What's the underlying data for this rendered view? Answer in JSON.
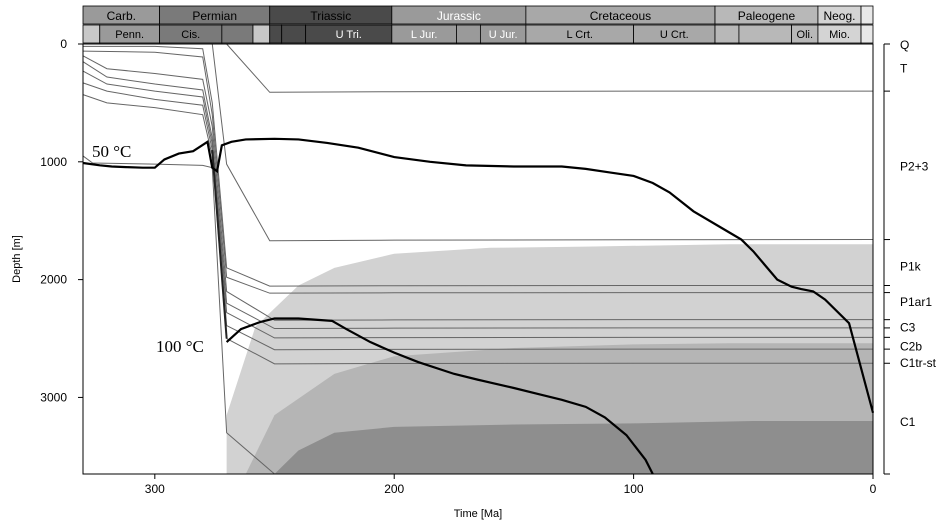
{
  "chart_data": {
    "type": "line",
    "title": "",
    "xlabel": "Time [Ma]",
    "ylabel": "Depth [m]",
    "xlim": [
      330,
      0
    ],
    "ylim": [
      3650,
      0
    ],
    "x_reversed": true,
    "y_reversed": true,
    "x_ticks": [
      300,
      200,
      100,
      0
    ],
    "y_ticks": [
      0,
      1000,
      2000,
      3000
    ],
    "grid": false,
    "timescale_periods": [
      {
        "label": "Carb.",
        "start": 330,
        "end": 298
      },
      {
        "label": "Permian",
        "start": 298,
        "end": 252
      },
      {
        "label": "Triassic",
        "start": 252,
        "end": 201
      },
      {
        "label": "Jurassic",
        "start": 201,
        "end": 145
      },
      {
        "label": "Cretaceous",
        "start": 145,
        "end": 66
      },
      {
        "label": "Paleogene",
        "start": 66,
        "end": 23
      },
      {
        "label": "Neog.",
        "start": 23,
        "end": 5
      }
    ],
    "timescale_epochs": [
      {
        "label": "",
        "start": 330,
        "end": 323
      },
      {
        "label": "Penn.",
        "start": 323,
        "end": 298
      },
      {
        "label": "Cis.",
        "start": 298,
        "end": 272
      },
      {
        "label": "",
        "start": 272,
        "end": 259
      },
      {
        "label": "",
        "start": 259,
        "end": 252
      },
      {
        "label": "",
        "start": 252,
        "end": 247
      },
      {
        "label": "",
        "start": 247,
        "end": 237
      },
      {
        "label": "U Tri.",
        "start": 237,
        "end": 201
      },
      {
        "label": "L Jur.",
        "start": 201,
        "end": 174
      },
      {
        "label": "",
        "start": 174,
        "end": 164
      },
      {
        "label": "U Jur.",
        "start": 164,
        "end": 145
      },
      {
        "label": "L Crt.",
        "start": 145,
        "end": 100
      },
      {
        "label": "U Crt.",
        "start": 100,
        "end": 66
      },
      {
        "label": "",
        "start": 66,
        "end": 56
      },
      {
        "label": "",
        "start": 56,
        "end": 34
      },
      {
        "label": "Oli.",
        "start": 34,
        "end": 23
      },
      {
        "label": "Mio.",
        "start": 23,
        "end": 5
      },
      {
        "label": "",
        "start": 5,
        "end": 0
      }
    ],
    "formations": [
      {
        "name": "Q",
        "depth": 0
      },
      {
        "name": "T",
        "depth": 200
      },
      {
        "name": "P2+3",
        "depth": 1030
      },
      {
        "name": "P1k",
        "depth": 1880
      },
      {
        "name": "P1ar1",
        "depth": 2180
      },
      {
        "name": "C3",
        "depth": 2400
      },
      {
        "name": "C2b",
        "depth": 2560
      },
      {
        "name": "C1tr-st",
        "depth": 2700
      },
      {
        "name": "C1",
        "depth": 3200
      }
    ],
    "formation_tops": [
      0,
      400,
      1660,
      2050,
      2110,
      2340,
      2410,
      2490,
      2590,
      2710,
      3650
    ],
    "temperature_zones": [
      {
        "name": "zone-light",
        "color": "#d2d2d2",
        "x": [
          270,
          258,
          240,
          225,
          200,
          160,
          120,
          60,
          0
        ],
        "top": [
          3150,
          2400,
          2050,
          1900,
          1780,
          1730,
          1720,
          1700,
          1700
        ]
      },
      {
        "name": "zone-mid",
        "color": "#b5b5b5",
        "x": [
          262,
          250,
          225,
          200,
          150,
          100,
          60,
          0
        ],
        "top": [
          3650,
          3150,
          2800,
          2650,
          2580,
          2550,
          2540,
          2540
        ]
      },
      {
        "name": "zone-dark",
        "color": "#8e8e8e",
        "x": [
          250,
          240,
          225,
          200,
          150,
          100,
          50,
          0
        ],
        "top": [
          3650,
          3450,
          3300,
          3250,
          3230,
          3220,
          3200,
          3200
        ]
      }
    ],
    "burial_curves": [
      {
        "name": "Q-top",
        "x": [
          330,
          0
        ],
        "y": [
          0,
          0
        ]
      },
      {
        "name": "T-top",
        "x": [
          330,
          300,
          276,
          270,
          252,
          200,
          100,
          0
        ],
        "y": [
          0,
          0,
          0,
          0,
          410,
          405,
          400,
          400
        ]
      },
      {
        "name": "P2-top",
        "x": [
          330,
          300,
          276,
          270,
          252,
          200,
          100,
          0
        ],
        "y": [
          0,
          0,
          0,
          1020,
          1670,
          1665,
          1662,
          1660
        ]
      },
      {
        "name": "P1k-top",
        "x": [
          330,
          300,
          280,
          276,
          270,
          252,
          200,
          100,
          0
        ],
        "y": [
          20,
          20,
          40,
          500,
          1900,
          2055,
          2052,
          2050,
          2050
        ]
      },
      {
        "name": "P1ar1-top",
        "x": [
          330,
          300,
          280,
          276,
          270,
          252,
          200,
          100,
          0
        ],
        "y": [
          60,
          70,
          110,
          600,
          1980,
          2115,
          2112,
          2110,
          2110
        ]
      },
      {
        "name": "C3-top",
        "x": [
          330,
          320,
          300,
          280,
          276,
          270,
          250,
          200,
          100,
          0
        ],
        "y": [
          100,
          210,
          250,
          300,
          700,
          2100,
          2345,
          2342,
          2340,
          2340
        ]
      },
      {
        "name": "C2b-top",
        "x": [
          330,
          320,
          300,
          280,
          276,
          270,
          250,
          200,
          100,
          0
        ],
        "y": [
          150,
          280,
          340,
          390,
          800,
          2200,
          2415,
          2412,
          2410,
          2410
        ]
      },
      {
        "name": "C2-mid",
        "x": [
          330,
          320,
          300,
          280,
          276,
          270,
          250,
          200,
          100,
          0
        ],
        "y": [
          230,
          340,
          400,
          450,
          850,
          2280,
          2495,
          2492,
          2490,
          2490
        ]
      },
      {
        "name": "C1tr-top",
        "x": [
          330,
          320,
          300,
          280,
          276,
          270,
          250,
          200,
          100,
          0
        ],
        "y": [
          330,
          400,
          470,
          520,
          900,
          2390,
          2595,
          2592,
          2590,
          2590
        ]
      },
      {
        "name": "C1-top",
        "x": [
          330,
          320,
          300,
          280,
          276,
          270,
          250,
          200,
          100,
          0
        ],
        "y": [
          430,
          500,
          540,
          600,
          950,
          2500,
          2715,
          2712,
          2710,
          2710
        ]
      },
      {
        "name": "basement",
        "x": [
          330,
          326,
          300,
          280,
          276,
          270,
          250
        ],
        "y": [
          950,
          1010,
          1020,
          1030,
          1050,
          3300,
          3650
        ]
      }
    ],
    "series": [
      {
        "name": "50 °C",
        "x": [
          330,
          323,
          318,
          312,
          305,
          300,
          296,
          290,
          284,
          278,
          276,
          274,
          272,
          268,
          262,
          250,
          240,
          228,
          215,
          200,
          185,
          170,
          150,
          130,
          120,
          110,
          100,
          92,
          85,
          75,
          60,
          55,
          50,
          45,
          40,
          34,
          30,
          25,
          20,
          10,
          0
        ],
        "y": [
          1010,
          1030,
          1040,
          1045,
          1050,
          1050,
          980,
          930,
          910,
          830,
          1050,
          1080,
          860,
          830,
          810,
          805,
          810,
          840,
          880,
          960,
          1000,
          1030,
          1040,
          1040,
          1060,
          1090,
          1120,
          1180,
          1260,
          1420,
          1600,
          1660,
          1760,
          1880,
          2000,
          2060,
          2080,
          2100,
          2170,
          2370,
          3130
        ]
      },
      {
        "name": "100 °C",
        "x": [
          270,
          264,
          256,
          250,
          240,
          226,
          220,
          210,
          200,
          190,
          175,
          165,
          150,
          140,
          130,
          120,
          112,
          103,
          95,
          92
        ],
        "y": [
          2530,
          2420,
          2360,
          2330,
          2330,
          2350,
          2420,
          2530,
          2620,
          2700,
          2800,
          2850,
          2920,
          2970,
          3020,
          3080,
          3170,
          3320,
          3530,
          3650
        ]
      }
    ]
  }
}
